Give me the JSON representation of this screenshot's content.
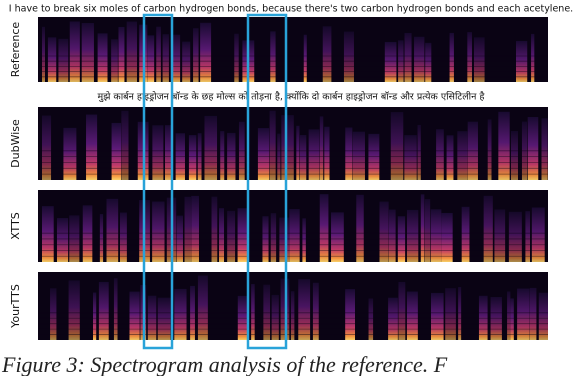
{
  "header": {
    "english_text": "I have to break six moles of carbon hydrogen bonds, because there's two carbon hydrogen bonds and each acetylene.",
    "hindi_text": "मुझे कार्बन हाइड्रोजन बॉन्ड के छह मोल्स को तोड़ना है, क्योंकि दो कार्बन हाइड्रोजन बॉन्ड और प्रत्येक एसिटिलीन है"
  },
  "panels": [
    {
      "label": "Reference"
    },
    {
      "label": "DubWise"
    },
    {
      "label": "XTTS"
    },
    {
      "label": "YourTTS"
    }
  ],
  "caption": "Figure 3:   Spectrogram analysis of the reference.  F"
}
